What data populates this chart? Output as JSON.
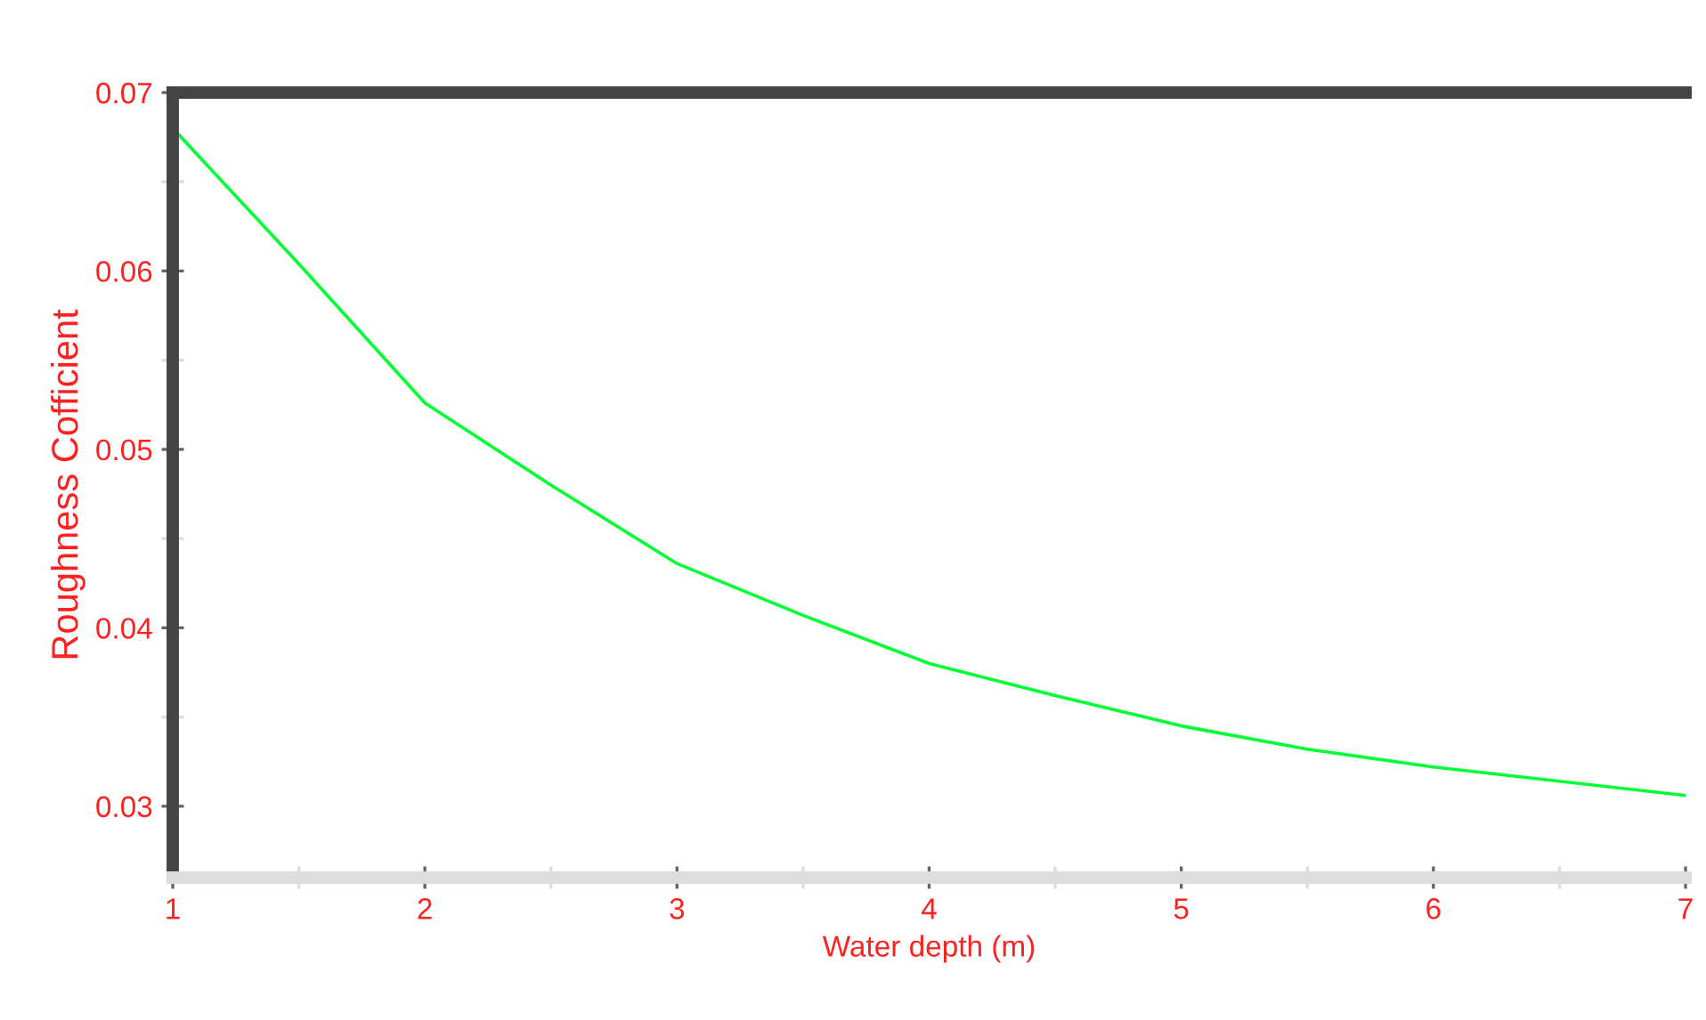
{
  "chart_data": {
    "type": "line",
    "xlabel": "Water depth (m)",
    "ylabel": "Roughness Cofficient",
    "x": [
      1,
      1.5,
      2,
      2.5,
      3,
      3.5,
      4,
      4.5,
      5,
      5.5,
      6,
      6.5,
      7
    ],
    "series": [
      {
        "color": "#00ff33",
        "values": [
          0.068,
          0.0604,
          0.0526,
          0.048,
          0.0436,
          0.0407,
          0.038,
          0.0362,
          0.0345,
          0.0332,
          0.0322,
          0.0314,
          0.0306
        ]
      }
    ],
    "xlim": [
      1,
      7
    ],
    "ylim": [
      0.026,
      0.07
    ],
    "xticks": [
      1,
      {
        "value": 1.5,
        "label": null
      },
      2,
      {
        "value": 2.5,
        "label": null
      },
      3,
      {
        "value": 3.5,
        "label": null
      },
      4,
      {
        "value": 4.5,
        "label": null
      },
      5,
      {
        "value": 5.5,
        "label": null
      },
      6,
      {
        "value": 6.5,
        "label": null
      },
      7
    ],
    "yticks": [
      0.03,
      {
        "value": 0.035,
        "label": null
      },
      0.04,
      {
        "value": 0.045,
        "label": null
      },
      0.05,
      {
        "value": 0.055,
        "label": null
      },
      0.06,
      {
        "value": 0.065,
        "label": null
      },
      0.07
    ],
    "grid": false,
    "marker": "none",
    "line_style": "solid"
  }
}
